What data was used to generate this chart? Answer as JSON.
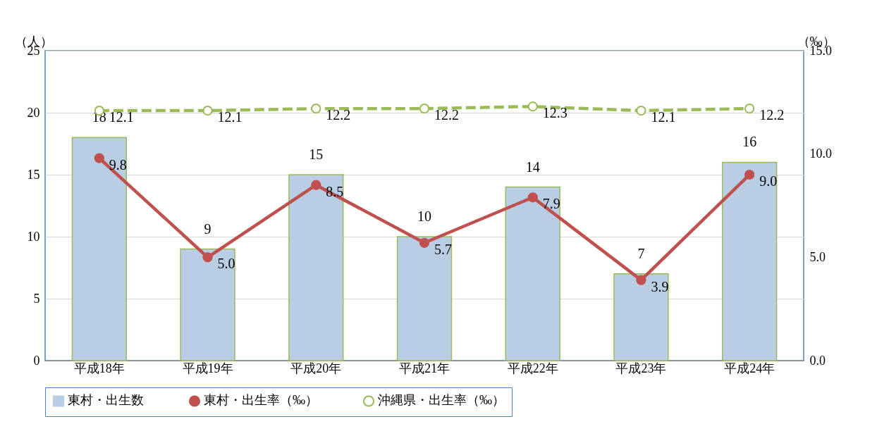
{
  "chart_data": {
    "type": "bar",
    "categories": [
      "平成18年",
      "平成19年",
      "平成20年",
      "平成21年",
      "平成22年",
      "平成23年",
      "平成24年"
    ],
    "ylabel": "（人）",
    "y2label": "（‰）",
    "ylim": [
      0,
      25
    ],
    "yticks": [
      0,
      5,
      10,
      15,
      20,
      25
    ],
    "y2lim": [
      0,
      15
    ],
    "y2ticks": [
      {
        "value": 0,
        "label": "0.0"
      },
      {
        "value": 5,
        "label": "5.0"
      },
      {
        "value": 10,
        "label": "10.0"
      },
      {
        "value": 15,
        "label": "15.0"
      }
    ],
    "grid": "y",
    "legend": "bottom",
    "series": [
      {
        "name": "東村・出生数",
        "color": "#b9cde5",
        "values": [
          18,
          9,
          15,
          10,
          14,
          7,
          16
        ],
        "value_labels": [
          "18",
          "9",
          "15",
          "10",
          "14",
          "7",
          "16"
        ]
      },
      {
        "name": "東村・出生率（‰）",
        "type": "line",
        "axis": "y2",
        "color": "#c0504d",
        "marker": "circle",
        "line_style": "solid",
        "values": [
          9.8,
          5.0,
          8.5,
          5.7,
          7.9,
          3.9,
          9.0
        ],
        "value_labels": [
          "9.8",
          "5.0",
          "8.5",
          "5.7",
          "7.9",
          "3.9",
          "9.0"
        ]
      },
      {
        "name": "沖縄県・出生率（‰）",
        "type": "line",
        "axis": "y2",
        "color": "#9bbb59",
        "marker": "circle",
        "line_style": "dashed",
        "values": [
          12.1,
          12.1,
          12.2,
          12.2,
          12.3,
          12.1,
          12.2
        ],
        "value_labels": [
          "12.1",
          "12.1",
          "12.2",
          "12.2",
          "12.3",
          "12.1",
          "12.2"
        ]
      }
    ]
  }
}
